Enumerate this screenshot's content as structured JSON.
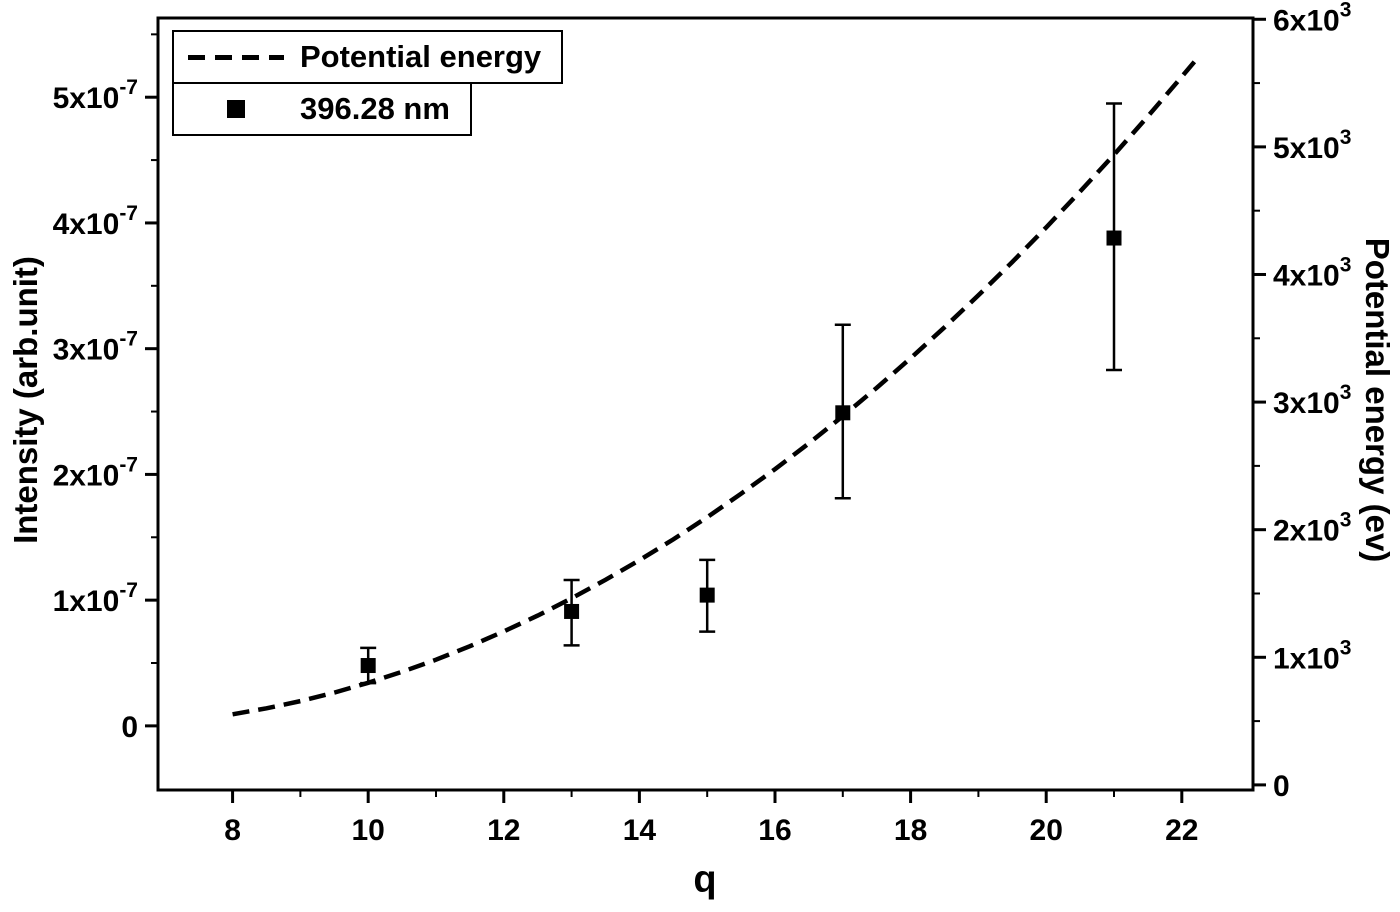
{
  "chart_data": {
    "type": "line",
    "title": "",
    "xlabel": "q",
    "grid": false,
    "legend_position": "top-left",
    "colors": {
      "line": "#000000",
      "marker": "#000000",
      "frame": "#000000"
    },
    "x_range": [
      6.9,
      23.05
    ],
    "x_ticks": [
      {
        "v": 8,
        "t": "8"
      },
      {
        "v": 10,
        "t": "10"
      },
      {
        "v": 12,
        "t": "12"
      },
      {
        "v": 14,
        "t": "14"
      },
      {
        "v": 16,
        "t": "16"
      },
      {
        "v": 18,
        "t": "18"
      },
      {
        "v": 20,
        "t": "20"
      },
      {
        "v": 22,
        "t": "22"
      }
    ],
    "x_minor_ticks": [
      9,
      11,
      13,
      15,
      17,
      19,
      21
    ],
    "left_axis": {
      "label": "Intensity (arb.unit)",
      "range": [
        -5.1e-08,
        5.63e-07
      ],
      "ticks": [
        {
          "v": 0,
          "t": "0",
          "e": ""
        },
        {
          "v": 1e-07,
          "t": "1x10",
          "e": "-7"
        },
        {
          "v": 2e-07,
          "t": "2x10",
          "e": "-7"
        },
        {
          "v": 3e-07,
          "t": "3x10",
          "e": "-7"
        },
        {
          "v": 4e-07,
          "t": "4x10",
          "e": "-7"
        },
        {
          "v": 5e-07,
          "t": "5x10",
          "e": "-7"
        }
      ],
      "minor_ticks": [
        5e-08,
        1.5e-07,
        2.5e-07,
        3.5e-07,
        4.5e-07,
        5.5e-07
      ]
    },
    "right_axis": {
      "label": "Potential energy (ev)",
      "range": [
        -40,
        6010
      ],
      "ticks": [
        {
          "v": 0,
          "t": "0",
          "e": ""
        },
        {
          "v": 1000,
          "t": "1x10",
          "e": "3"
        },
        {
          "v": 2000,
          "t": "2x10",
          "e": "3"
        },
        {
          "v": 3000,
          "t": "3x10",
          "e": "3"
        },
        {
          "v": 4000,
          "t": "4x10",
          "e": "3"
        },
        {
          "v": 5000,
          "t": "5x10",
          "e": "3"
        },
        {
          "v": 6000,
          "t": "6x10",
          "e": "3"
        }
      ],
      "minor_ticks": [
        500,
        1500,
        2500,
        3500,
        4500,
        5500
      ]
    },
    "series": [
      {
        "name": "Potential energy",
        "type": "dashed-line",
        "axis": "right",
        "points": [
          [
            8,
            553
          ],
          [
            8.5,
            600
          ],
          [
            9,
            657
          ],
          [
            9.5,
            723
          ],
          [
            10,
            800
          ],
          [
            10.5,
            886
          ],
          [
            11,
            981
          ],
          [
            11.5,
            1087
          ],
          [
            12,
            1203
          ],
          [
            12.5,
            1327
          ],
          [
            13,
            1462
          ],
          [
            13.5,
            1607
          ],
          [
            14,
            1761
          ],
          [
            14.5,
            1924
          ],
          [
            15,
            2098
          ],
          [
            15.5,
            2282
          ],
          [
            16,
            2474
          ],
          [
            16.5,
            2677
          ],
          [
            17,
            2890
          ],
          [
            17.5,
            3112
          ],
          [
            18,
            3344
          ],
          [
            18.5,
            3586
          ],
          [
            19,
            3837
          ],
          [
            19.5,
            4098
          ],
          [
            20,
            4369
          ],
          [
            20.5,
            4650
          ],
          [
            21,
            4939
          ],
          [
            21.5,
            5240
          ],
          [
            22,
            5550
          ],
          [
            22.2,
            5676
          ]
        ]
      },
      {
        "name": "396.28 nm",
        "type": "scatter-errorbar",
        "axis": "left",
        "points": [
          {
            "q": 10,
            "y": 4.8e-08,
            "lo": 3.4e-08,
            "hi": 6.2e-08
          },
          {
            "q": 13,
            "y": 9.1e-08,
            "lo": 6.4e-08,
            "hi": 1.16e-07
          },
          {
            "q": 15,
            "y": 1.04e-07,
            "lo": 7.5e-08,
            "hi": 1.32e-07
          },
          {
            "q": 17,
            "y": 2.49e-07,
            "lo": 1.81e-07,
            "hi": 3.19e-07
          },
          {
            "q": 21,
            "y": 3.88e-07,
            "lo": 2.83e-07,
            "hi": 4.95e-07
          }
        ]
      }
    ]
  }
}
